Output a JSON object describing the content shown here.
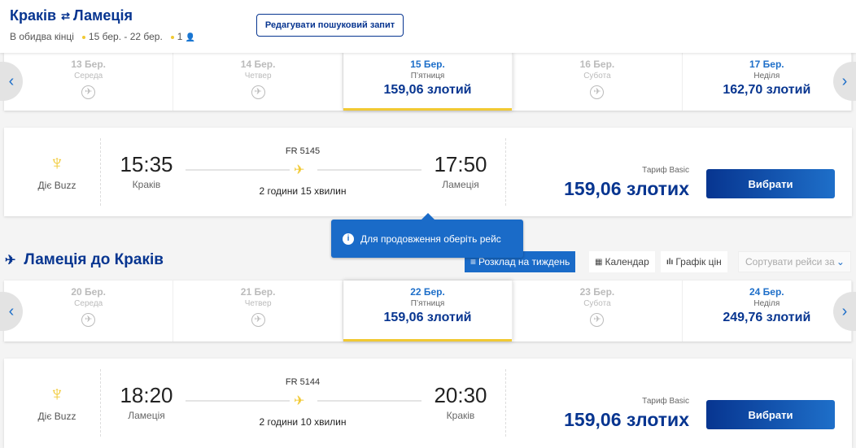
{
  "header": {
    "from": "Краків",
    "to": "Ламеція",
    "trip_type": "В обидва кінці",
    "dates": "15 бер. - 22 бер.",
    "passengers": "1",
    "edit_label": "Редагувати пошуковий запит"
  },
  "colors": {
    "brand": "#073590",
    "accent": "#f1c933",
    "info": "#1a6bc8"
  },
  "outbound": {
    "dates": [
      {
        "date": "13  Бер.",
        "weekday": "Середа",
        "price": null
      },
      {
        "date": "14  Бер.",
        "weekday": "Четвер",
        "price": null
      },
      {
        "date": "15  Бер.",
        "weekday": "П’ятниця",
        "price": "159,06 злотий",
        "selected": true
      },
      {
        "date": "16  Бер.",
        "weekday": "Субота",
        "price": null
      },
      {
        "date": "17  Бер.",
        "weekday": "Неділя",
        "price": "162,70 злотий"
      }
    ],
    "flight": {
      "airline": "Діє Buzz",
      "dep_time": "15:35",
      "dep_city": "Краків",
      "number": "FR 5145",
      "duration": "2 години 15 хвилин",
      "arr_time": "17:50",
      "arr_city": "Ламеція",
      "fare": "Тариф Basic",
      "price": "159,06 злотих",
      "select_label": "Вибрати"
    }
  },
  "tooltip": "Для продовження оберіть рейс",
  "return_section": {
    "title": "Ламеція до Краків",
    "tabs": [
      "Розклад на тиждень",
      "Календар",
      "Графік цін"
    ],
    "sort_placeholder": "Сортувати рейси за"
  },
  "inbound": {
    "dates": [
      {
        "date": "20  Бер.",
        "weekday": "Середа",
        "price": null
      },
      {
        "date": "21  Бер.",
        "weekday": "Четвер",
        "price": null
      },
      {
        "date": "22  Бер.",
        "weekday": "П’ятниця",
        "price": "159,06 злотий",
        "selected": true
      },
      {
        "date": "23  Бер.",
        "weekday": "Субота",
        "price": null
      },
      {
        "date": "24  Бер.",
        "weekday": "Неділя",
        "price": "249,76 злотий"
      }
    ],
    "flight": {
      "airline": "Діє Buzz",
      "dep_time": "18:20",
      "dep_city": "Ламеція",
      "number": "FR 5144",
      "duration": "2 години 10 хвилин",
      "arr_time": "20:30",
      "arr_city": "Краків",
      "fare": "Тариф Basic",
      "price": "159,06 злотих",
      "select_label": "Вибрати"
    }
  }
}
